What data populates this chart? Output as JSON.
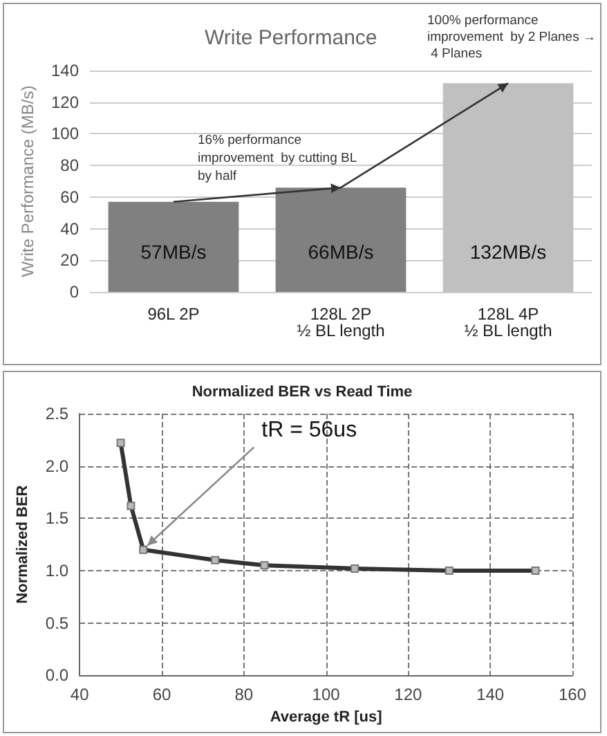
{
  "chart_data": [
    {
      "type": "bar",
      "title": "Write Performance",
      "ylabel": "Write Performance (MB/s)",
      "categories": [
        "96L 2P",
        "128L 2P\n½ BL length",
        "128L 4P\n½ BL length"
      ],
      "values": [
        57,
        66,
        132
      ],
      "colors": [
        "#808080",
        "#808080",
        "#c0c0c0"
      ],
      "value_labels": [
        "57MB/s",
        "66MB/s",
        "132MB/s"
      ],
      "ylim": [
        0,
        140
      ],
      "yticks": [
        0,
        20,
        40,
        60,
        80,
        100,
        120,
        140
      ],
      "grid": "y",
      "annotations": [
        "16% performance improvement  by cutting BL by half",
        "100% performance improvement  by 2 Planes → 4 Planes"
      ]
    },
    {
      "type": "line",
      "title": "Normalized BER vs Read Time",
      "xlabel": "Average tR [us]",
      "ylabel": "Normalized BER",
      "x": [
        50,
        52.5,
        55.5,
        73,
        85,
        107,
        130,
        151
      ],
      "series": [
        {
          "color": "#333333",
          "values": [
            2.22,
            1.62,
            1.2,
            1.1,
            1.05,
            1.02,
            1.0,
            1.0
          ]
        }
      ],
      "xlim": [
        40,
        160
      ],
      "xticks": [
        40,
        60,
        80,
        100,
        120,
        140,
        160
      ],
      "ylim": [
        0,
        2.5
      ],
      "yticks": [
        {
          "value": 0,
          "label": "0.0"
        },
        {
          "value": 0.5,
          "label": "0.5"
        },
        {
          "value": 1,
          "label": "1.0"
        },
        {
          "value": 1.5,
          "label": "1.5"
        },
        {
          "value": 2,
          "label": "2.0"
        },
        {
          "value": 2.5,
          "label": "2.5"
        }
      ],
      "grid": true,
      "marker": "square",
      "annotations": [
        {
          "text": "tR = 56us",
          "x": 55.5,
          "y": 1.2
        }
      ]
    }
  ]
}
